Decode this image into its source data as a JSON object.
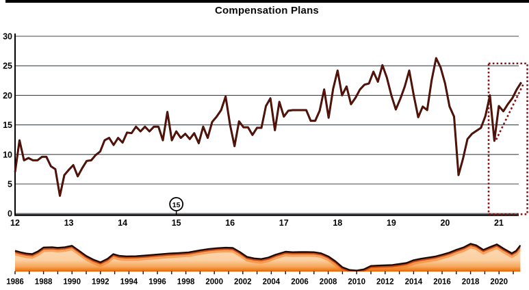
{
  "title": "Compensation Plans",
  "colors": {
    "line": "#330b05",
    "line_core": "#6b1408",
    "grid": "#3f474c",
    "axis": "#000000",
    "box": "#8b1212",
    "area_top_line": "#240800",
    "area_glow_inner": "#c43a00",
    "area_glow_outer": "#f2791f",
    "tick": "#111111",
    "label": "#000000",
    "area_fill_stops": [
      "#f9b97e",
      "#fcd7ae",
      "#fbd0a2",
      "#f7a75a",
      "#ef7d1f",
      "#e06008"
    ]
  },
  "chart_data": [
    {
      "type": "line",
      "title": "Compensation Plans",
      "x_start_year": 2012,
      "x_step": "monthly",
      "x_tick_labels": [
        "12",
        "13",
        "14",
        "15",
        "16",
        "17",
        "18",
        "19",
        "20",
        "21"
      ],
      "y_tick_labels": [
        "0",
        "5",
        "10",
        "15",
        "20",
        "25",
        "30"
      ],
      "y_ticks": [
        0,
        5,
        10,
        15,
        20,
        25,
        30
      ],
      "ylim": [
        0,
        30
      ],
      "grid": true,
      "values": [
        7.0,
        12.4,
        9.0,
        9.4,
        9.0,
        9.0,
        9.6,
        9.6,
        8.0,
        7.5,
        3.0,
        6.5,
        7.4,
        8.2,
        6.3,
        7.7,
        8.9,
        9.0,
        9.9,
        10.5,
        12.4,
        12.8,
        11.6,
        12.8,
        12.0,
        13.7,
        13.6,
        14.7,
        13.9,
        14.7,
        13.9,
        14.7,
        14.7,
        12.4,
        17.2,
        12.4,
        13.9,
        12.8,
        13.5,
        12.6,
        13.6,
        11.9,
        14.7,
        12.8,
        15.5,
        16.4,
        17.5,
        19.8,
        15.0,
        11.4,
        15.6,
        14.6,
        14.6,
        13.3,
        14.5,
        14.5,
        18.2,
        19.5,
        14.1,
        18.9,
        16.4,
        17.4,
        17.5,
        17.5,
        17.5,
        17.5,
        15.7,
        15.7,
        17.4,
        21.0,
        16.2,
        21.1,
        24.2,
        20.0,
        21.5,
        18.5,
        19.6,
        21.0,
        21.8,
        22.0,
        24.0,
        22.3,
        25.1,
        23.0,
        20.0,
        17.6,
        19.4,
        21.5,
        24.2,
        20.0,
        16.3,
        18.1,
        17.5,
        22.6,
        26.3,
        24.7,
        22.0,
        18.1,
        16.4,
        6.5,
        9.3,
        12.6,
        13.5,
        14.0,
        14.5,
        16.5,
        20.0,
        12.3,
        18.2,
        17.3,
        18.5,
        19.5,
        21.0,
        22.2
      ],
      "annotations": {
        "circled_label": {
          "text": "15",
          "at_year": 2015
        },
        "dotted_box": {
          "x0_year": 2020.81,
          "x1_year": 2021.53,
          "y0": 0.0,
          "y1": 25.4
        },
        "dotted_trend_line": {
          "x0_year": 2020.95,
          "y0": 12.5,
          "x1_year": 2021.45,
          "y1": 21.8
        }
      }
    },
    {
      "type": "area",
      "x_tick_labels": [
        "1986",
        "1988",
        "1990",
        "1992",
        "1994",
        "1996",
        "1998",
        "2000",
        "2002",
        "2004",
        "2006",
        "2008",
        "2010",
        "2012",
        "2014",
        "2016",
        "2018",
        "2020"
      ],
      "tick_first_year": 1986,
      "tick_last_year": 2021,
      "points": [
        [
          1986.0,
          17.0
        ],
        [
          1986.4,
          15.8
        ],
        [
          1986.8,
          14.8
        ],
        [
          1987.2,
          14.3
        ],
        [
          1987.6,
          16.5
        ],
        [
          1988.0,
          19.8
        ],
        [
          1988.6,
          20.0
        ],
        [
          1989.0,
          19.5
        ],
        [
          1989.5,
          20.0
        ],
        [
          1990.0,
          21.2
        ],
        [
          1990.5,
          17.0
        ],
        [
          1991.0,
          12.8
        ],
        [
          1991.5,
          9.8
        ],
        [
          1992.0,
          7.6
        ],
        [
          1992.5,
          10.5
        ],
        [
          1992.9,
          14.3
        ],
        [
          1993.3,
          13.0
        ],
        [
          1993.8,
          12.5
        ],
        [
          1994.5,
          12.6
        ],
        [
          1995.2,
          13.2
        ],
        [
          1996.0,
          14.0
        ],
        [
          1996.8,
          14.8
        ],
        [
          1997.5,
          15.2
        ],
        [
          1998.2,
          15.8
        ],
        [
          1999.0,
          17.5
        ],
        [
          1999.6,
          18.5
        ],
        [
          2000.2,
          19.2
        ],
        [
          2000.8,
          19.6
        ],
        [
          2001.3,
          19.4
        ],
        [
          2001.8,
          16.0
        ],
        [
          2002.3,
          12.0
        ],
        [
          2002.8,
          10.8
        ],
        [
          2003.3,
          10.3
        ],
        [
          2003.8,
          11.5
        ],
        [
          2004.3,
          13.8
        ],
        [
          2005.0,
          16.3
        ],
        [
          2005.5,
          15.9
        ],
        [
          2006.0,
          16.0
        ],
        [
          2006.5,
          16.0
        ],
        [
          2007.0,
          15.9
        ],
        [
          2007.5,
          15.0
        ],
        [
          2008.0,
          12.5
        ],
        [
          2008.5,
          8.5
        ],
        [
          2009.0,
          3.5
        ],
        [
          2009.5,
          1.3
        ],
        [
          2010.0,
          0.8
        ],
        [
          2010.5,
          1.8
        ],
        [
          2011.0,
          4.6
        ],
        [
          2011.7,
          5.0
        ],
        [
          2012.5,
          5.4
        ],
        [
          2013.0,
          6.2
        ],
        [
          2013.5,
          7.0
        ],
        [
          2014.0,
          9.3
        ],
        [
          2014.5,
          10.5
        ],
        [
          2015.0,
          11.4
        ],
        [
          2015.5,
          12.3
        ],
        [
          2016.0,
          13.8
        ],
        [
          2016.5,
          15.5
        ],
        [
          2017.0,
          17.8
        ],
        [
          2017.5,
          19.8
        ],
        [
          2018.0,
          22.8
        ],
        [
          2018.4,
          21.5
        ],
        [
          2018.9,
          17.8
        ],
        [
          2019.3,
          19.8
        ],
        [
          2019.85,
          22.3
        ],
        [
          2020.3,
          19.0
        ],
        [
          2020.9,
          15.0
        ],
        [
          2021.2,
          17.0
        ],
        [
          2021.5,
          21.5
        ]
      ]
    }
  ]
}
